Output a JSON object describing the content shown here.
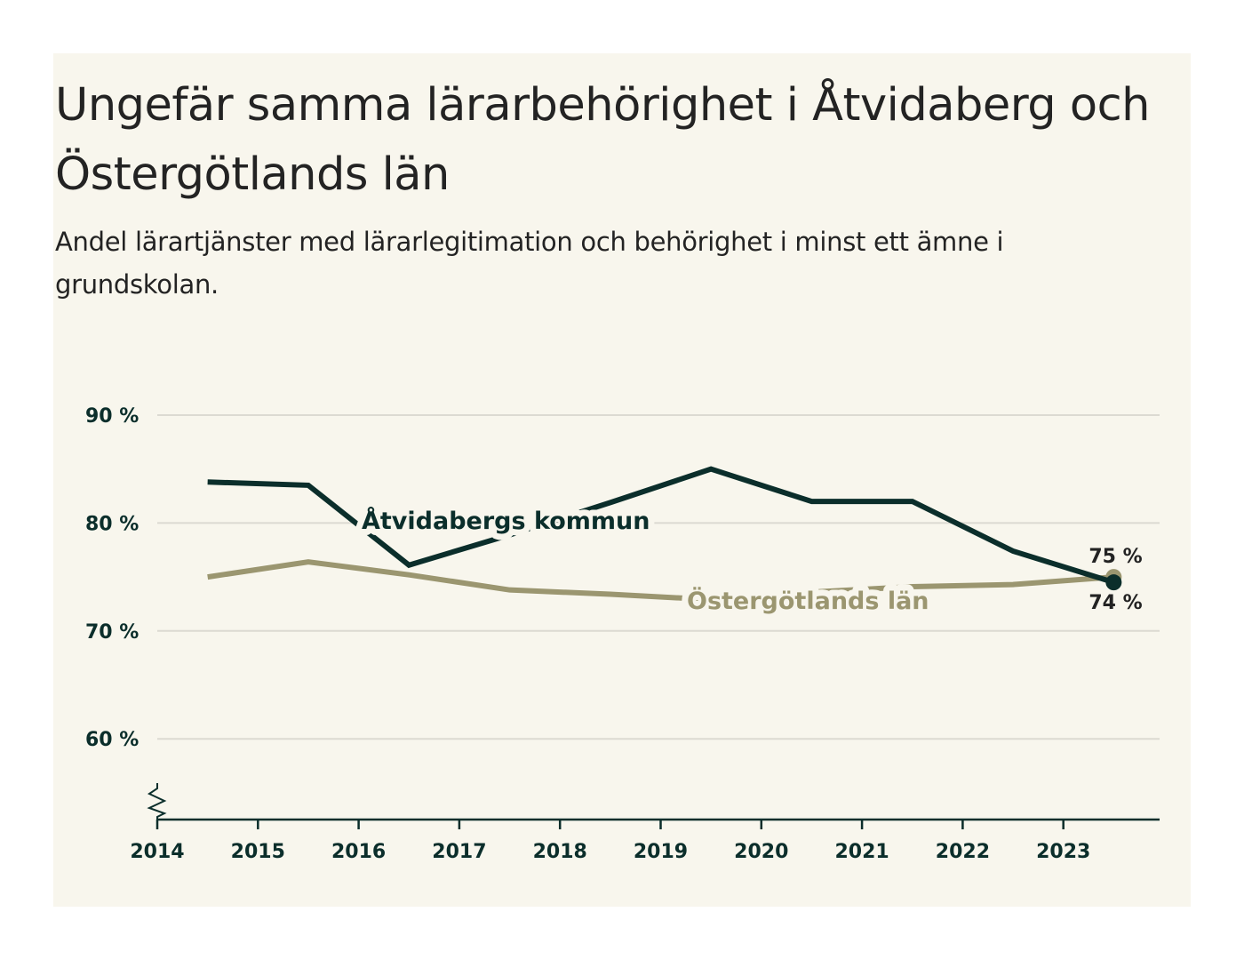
{
  "title": "Ungefär samma lärarbehörighet i Åtvidaberg och Östergötlands län",
  "subtitle": "Andel lärartjänster med lärarlegitimation och behörighet i minst ett ämne i grundskolan.",
  "colors": {
    "background": "#f8f6ed",
    "atvidaberg": "#0b2e2b",
    "ostergotland": "#9b9670",
    "grid": "#dcdad2",
    "axis": "#0b2e2b"
  },
  "chart_data": {
    "type": "line",
    "title": "Ungefär samma lärarbehörighet i Åtvidaberg och Östergötlands län",
    "subtitle": "Andel lärartjänster med lärarlegitimation och behörighet i minst ett ämne i grundskolan.",
    "xlabel": "",
    "ylabel": "",
    "x": [
      2014,
      2015,
      2016,
      2017,
      2018,
      2019,
      2020,
      2021,
      2022,
      2023
    ],
    "x_ticks": [
      "2014",
      "2015",
      "2016",
      "2017",
      "2018",
      "2019",
      "2020",
      "2021",
      "2022",
      "2023"
    ],
    "y_ticks": [
      {
        "value": 60,
        "label": "60 %"
      },
      {
        "value": 70,
        "label": "70 %"
      },
      {
        "value": 80,
        "label": "80 %"
      },
      {
        "value": 90,
        "label": "90 %"
      }
    ],
    "ylim": [
      52.5,
      90
    ],
    "xlim": [
      2014,
      2024
    ],
    "grid": true,
    "axis_break": true,
    "series": [
      {
        "name": "Åtvidabergs kommun",
        "key": "atvidaberg",
        "values": [
          83.8,
          83.5,
          76.1,
          78.9,
          81.9,
          85.0,
          82.0,
          82.0,
          77.4,
          74.5
        ],
        "end_label": "74 %"
      },
      {
        "name": "Östergötlands län",
        "key": "ostergotland",
        "values": [
          75.0,
          76.4,
          75.2,
          73.8,
          73.4,
          72.9,
          73.6,
          74.1,
          74.3,
          75.0
        ],
        "end_label": "75 %"
      }
    ]
  }
}
